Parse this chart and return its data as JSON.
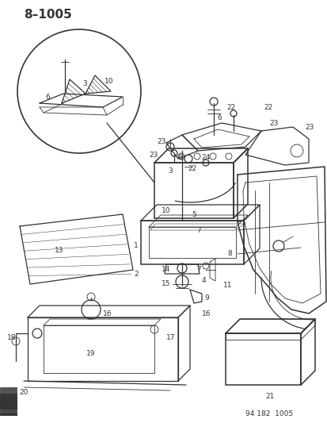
{
  "title": "8–1005",
  "footer": "94 182  1005",
  "bg_color": "#ffffff",
  "fg_color": "#333333",
  "title_fontsize": 11,
  "footer_fontsize": 6.5
}
